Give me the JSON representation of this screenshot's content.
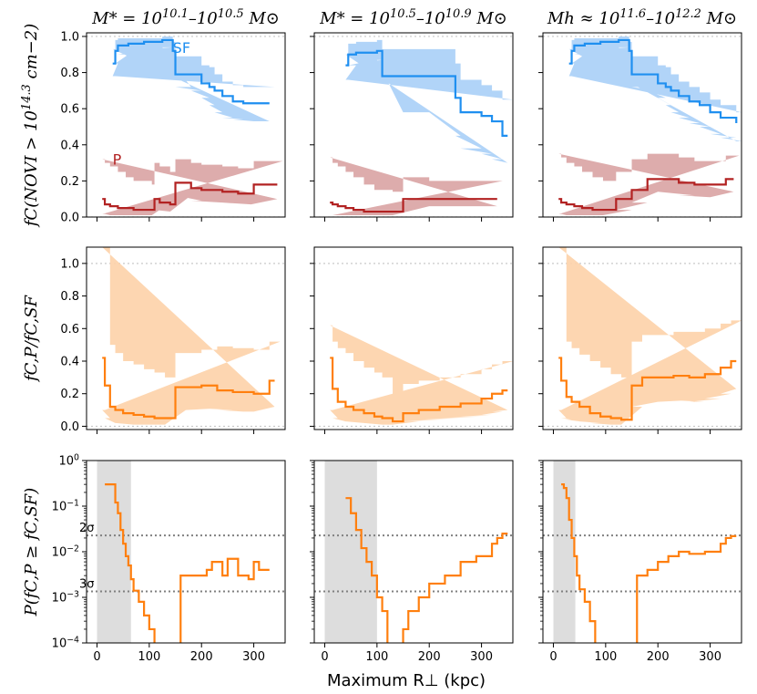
{
  "figure": {
    "xlabel": "Maximum R⊥ (kpc)",
    "column_titles": [
      "M* = 10^10.1–10^10.5 M⊙",
      "M* = 10^10.5–10^10.9 M⊙",
      "Mh ≈ 10^11.6–10^12.2 M⊙"
    ],
    "row_ylabels": [
      "fC(NOVI > 10^14.3 cm−2)",
      "fC,P/fC,SF",
      "P(fC,P ≥ fC,SF)"
    ],
    "series_labels": {
      "sf": "SF",
      "p": "P"
    },
    "sigma_labels": {
      "two": "2σ",
      "three": "3σ"
    },
    "colors": {
      "sf": "#1f8ff0",
      "sf_band": "#a9cff7",
      "p": "#b22222",
      "p_band": "#d9a3a3",
      "ratio": "#ff7f0e",
      "ratio_band": "#fdd1a8",
      "shade": "#dddddd"
    }
  },
  "chart_data": [
    {
      "type": "line",
      "panel": "row1-col1",
      "xlim": [
        -20,
        360
      ],
      "ylim": [
        0,
        1.02
      ],
      "yticks": [
        "0.0",
        "0.2",
        "0.4",
        "0.6",
        "0.8",
        "1.0"
      ],
      "xticks": [
        "0",
        "100",
        "200",
        "300"
      ],
      "series": [
        {
          "name": "SF",
          "x": [
            30,
            35,
            40,
            60,
            90,
            125,
            145,
            150,
            180,
            200,
            215,
            225,
            240,
            260,
            280,
            300,
            330
          ],
          "y": [
            0.85,
            0.92,
            0.95,
            0.96,
            0.97,
            0.98,
            0.92,
            0.79,
            0.79,
            0.74,
            0.72,
            0.7,
            0.67,
            0.64,
            0.63,
            0.63,
            0.63
          ],
          "lo": [
            0.78,
            0.85,
            0.9,
            0.92,
            0.93,
            0.94,
            0.85,
            0.72,
            0.7,
            0.66,
            0.62,
            0.58,
            0.55,
            0.54,
            0.53,
            0.53,
            0.53
          ],
          "hi": [
            0.93,
            0.98,
            0.99,
            0.99,
            0.99,
            1.0,
            0.97,
            0.89,
            0.89,
            0.84,
            0.83,
            0.79,
            0.75,
            0.73,
            0.72,
            0.72,
            0.72
          ]
        },
        {
          "name": "P",
          "x": [
            10,
            15,
            25,
            40,
            55,
            70,
            105,
            110,
            120,
            140,
            150,
            180,
            200,
            240,
            270,
            295,
            300,
            345
          ],
          "y": [
            0.1,
            0.07,
            0.06,
            0.05,
            0.05,
            0.04,
            0.04,
            0.1,
            0.08,
            0.07,
            0.19,
            0.16,
            0.15,
            0.14,
            0.13,
            0.13,
            0.18,
            0.18
          ],
          "lo": [
            0.02,
            0.01,
            0.01,
            0.01,
            0.01,
            0.01,
            0.01,
            0.04,
            0.03,
            0.03,
            0.12,
            0.09,
            0.08,
            0.08,
            0.07,
            0.07,
            0.1,
            0.1
          ],
          "hi": [
            0.32,
            0.3,
            0.28,
            0.25,
            0.22,
            0.2,
            0.18,
            0.3,
            0.28,
            0.25,
            0.32,
            0.3,
            0.29,
            0.28,
            0.27,
            0.27,
            0.31,
            0.31
          ]
        }
      ]
    },
    {
      "type": "line",
      "panel": "row1-col2",
      "xlim": [
        -20,
        360
      ],
      "ylim": [
        0,
        1.02
      ],
      "yticks": [
        "0.0",
        "0.2",
        "0.4",
        "0.6",
        "0.8",
        "1.0"
      ],
      "xticks": [
        "0",
        "100",
        "200",
        "300"
      ],
      "series": [
        {
          "name": "SF",
          "x": [
            40,
            45,
            60,
            80,
            100,
            110,
            150,
            200,
            250,
            260,
            300,
            320,
            340,
            350
          ],
          "y": [
            0.84,
            0.9,
            0.91,
            0.91,
            0.92,
            0.78,
            0.78,
            0.78,
            0.66,
            0.58,
            0.56,
            0.53,
            0.45,
            0.45
          ],
          "lo": [
            0.76,
            0.84,
            0.86,
            0.86,
            0.87,
            0.58,
            0.58,
            0.58,
            0.45,
            0.38,
            0.35,
            0.32,
            0.3,
            0.3
          ],
          "hi": [
            0.9,
            0.96,
            0.97,
            0.97,
            0.98,
            0.93,
            0.93,
            0.93,
            0.85,
            0.76,
            0.73,
            0.7,
            0.65,
            0.65
          ]
        },
        {
          "name": "P",
          "x": [
            10,
            15,
            25,
            40,
            55,
            75,
            95,
            130,
            150,
            200,
            250,
            330
          ],
          "y": [
            0.08,
            0.07,
            0.06,
            0.05,
            0.04,
            0.03,
            0.03,
            0.03,
            0.1,
            0.1,
            0.1,
            0.1
          ],
          "lo": [
            0.01,
            0.01,
            0.01,
            0.01,
            0.01,
            0.01,
            0.01,
            0.01,
            0.06,
            0.06,
            0.06,
            0.06
          ],
          "hi": [
            0.33,
            0.3,
            0.28,
            0.25,
            0.22,
            0.18,
            0.15,
            0.14,
            0.22,
            0.2,
            0.2,
            0.2
          ]
        }
      ]
    },
    {
      "type": "line",
      "panel": "row1-col3",
      "xlim": [
        -20,
        360
      ],
      "ylim": [
        0,
        1.02
      ],
      "yticks": [
        "0.0",
        "0.2",
        "0.4",
        "0.6",
        "0.8",
        "1.0"
      ],
      "xticks": [
        "0",
        "100",
        "200",
        "300"
      ],
      "series": [
        {
          "name": "SF",
          "x": [
            30,
            35,
            40,
            60,
            90,
            125,
            145,
            150,
            180,
            200,
            215,
            225,
            240,
            260,
            280,
            300,
            320,
            350
          ],
          "y": [
            0.85,
            0.92,
            0.95,
            0.96,
            0.97,
            0.98,
            0.92,
            0.79,
            0.79,
            0.74,
            0.72,
            0.7,
            0.67,
            0.64,
            0.62,
            0.58,
            0.55,
            0.52
          ],
          "lo": [
            0.78,
            0.85,
            0.9,
            0.92,
            0.93,
            0.94,
            0.85,
            0.72,
            0.7,
            0.66,
            0.62,
            0.58,
            0.55,
            0.52,
            0.5,
            0.46,
            0.44,
            0.42
          ],
          "hi": [
            0.93,
            0.98,
            0.99,
            0.99,
            0.99,
            1.0,
            0.97,
            0.89,
            0.89,
            0.84,
            0.83,
            0.79,
            0.75,
            0.72,
            0.69,
            0.65,
            0.62,
            0.58
          ]
        },
        {
          "name": "P",
          "x": [
            10,
            15,
            25,
            40,
            55,
            75,
            95,
            120,
            150,
            180,
            200,
            240,
            270,
            300,
            330,
            345
          ],
          "y": [
            0.1,
            0.08,
            0.07,
            0.06,
            0.05,
            0.04,
            0.04,
            0.1,
            0.15,
            0.21,
            0.21,
            0.19,
            0.18,
            0.18,
            0.21,
            0.21
          ],
          "lo": [
            0.02,
            0.01,
            0.01,
            0.01,
            0.01,
            0.01,
            0.01,
            0.04,
            0.08,
            0.14,
            0.14,
            0.12,
            0.11,
            0.11,
            0.14,
            0.14
          ],
          "hi": [
            0.35,
            0.33,
            0.3,
            0.28,
            0.25,
            0.22,
            0.2,
            0.25,
            0.32,
            0.35,
            0.35,
            0.33,
            0.31,
            0.31,
            0.34,
            0.34
          ]
        }
      ]
    },
    {
      "type": "line",
      "panel": "row2-col1",
      "xlim": [
        -20,
        360
      ],
      "ylim": [
        -0.02,
        1.1
      ],
      "yticks": [
        "0.0",
        "0.2",
        "0.4",
        "0.6",
        "0.8",
        "1.0"
      ],
      "xticks": [
        "0",
        "100",
        "200",
        "300"
      ],
      "series": [
        {
          "name": "",
          "x": [
            10,
            15,
            25,
            35,
            50,
            70,
            90,
            110,
            130,
            150,
            170,
            200,
            230,
            260,
            280,
            300,
            330,
            340
          ],
          "y": [
            0.42,
            0.25,
            0.12,
            0.1,
            0.08,
            0.07,
            0.06,
            0.05,
            0.05,
            0.24,
            0.24,
            0.25,
            0.22,
            0.21,
            0.21,
            0.2,
            0.28,
            0.28
          ],
          "lo": [
            0.1,
            0.05,
            0.02,
            0.02,
            0.01,
            0.01,
            0.01,
            0.01,
            0.01,
            0.1,
            0.1,
            0.11,
            0.1,
            0.09,
            0.09,
            0.09,
            0.12,
            0.12
          ],
          "hi": [
            1.1,
            1.1,
            0.5,
            0.45,
            0.4,
            0.38,
            0.35,
            0.33,
            0.3,
            0.45,
            0.45,
            0.47,
            0.49,
            0.48,
            0.48,
            0.47,
            0.52,
            0.52
          ]
        }
      ]
    },
    {
      "type": "line",
      "panel": "row2-col2",
      "xlim": [
        -20,
        360
      ],
      "ylim": [
        -0.02,
        1.1
      ],
      "yticks": [
        "0.0",
        "0.2",
        "0.4",
        "0.6",
        "0.8",
        "1.0"
      ],
      "xticks": [
        "0",
        "100",
        "200",
        "300"
      ],
      "series": [
        {
          "name": "",
          "x": [
            10,
            15,
            25,
            40,
            55,
            75,
            95,
            110,
            130,
            150,
            180,
            220,
            260,
            300,
            320,
            340,
            350
          ],
          "y": [
            0.42,
            0.23,
            0.15,
            0.12,
            0.1,
            0.08,
            0.06,
            0.05,
            0.03,
            0.08,
            0.1,
            0.12,
            0.14,
            0.17,
            0.2,
            0.22,
            0.22
          ],
          "lo": [
            0.1,
            0.05,
            0.03,
            0.03,
            0.02,
            0.02,
            0.01,
            0.01,
            0.01,
            0.03,
            0.04,
            0.05,
            0.06,
            0.07,
            0.09,
            0.1,
            0.1
          ],
          "hi": [
            0.62,
            0.52,
            0.48,
            0.45,
            0.4,
            0.36,
            0.33,
            0.3,
            0.2,
            0.26,
            0.28,
            0.3,
            0.32,
            0.35,
            0.38,
            0.4,
            0.4
          ]
        }
      ]
    },
    {
      "type": "line",
      "panel": "row2-col3",
      "xlim": [
        -20,
        360
      ],
      "ylim": [
        -0.02,
        1.1
      ],
      "yticks": [
        "0.0",
        "0.2",
        "0.4",
        "0.6",
        "0.8",
        "1.0"
      ],
      "xticks": [
        "0",
        "100",
        "200",
        "300"
      ],
      "series": [
        {
          "name": "",
          "x": [
            10,
            15,
            25,
            35,
            50,
            70,
            90,
            110,
            130,
            150,
            170,
            200,
            230,
            260,
            290,
            320,
            340,
            350
          ],
          "y": [
            0.42,
            0.28,
            0.18,
            0.15,
            0.12,
            0.08,
            0.06,
            0.05,
            0.04,
            0.25,
            0.3,
            0.3,
            0.31,
            0.3,
            0.32,
            0.36,
            0.4,
            0.4
          ],
          "lo": [
            0.1,
            0.05,
            0.04,
            0.03,
            0.03,
            0.02,
            0.01,
            0.01,
            0.01,
            0.12,
            0.15,
            0.15,
            0.16,
            0.15,
            0.17,
            0.2,
            0.23,
            0.23
          ],
          "hi": [
            1.1,
            1.1,
            0.52,
            0.48,
            0.44,
            0.4,
            0.36,
            0.32,
            0.3,
            0.52,
            0.56,
            0.56,
            0.58,
            0.58,
            0.6,
            0.63,
            0.65,
            0.65
          ]
        }
      ]
    },
    {
      "type": "line",
      "panel": "row3-col1",
      "yscale": "log",
      "xlim": [
        -20,
        360
      ],
      "ylim": [
        0.0001,
        1
      ],
      "yticks": [
        "10^-4",
        "10^-3",
        "10^-2",
        "10^-1",
        "10^0"
      ],
      "xticks": [
        "0",
        "100",
        "200",
        "300"
      ],
      "shade_x": [
        0,
        65
      ],
      "hlines": [
        {
          "label": "2σ",
          "y": 0.0228
        },
        {
          "label": "3σ",
          "y": 0.00135
        }
      ],
      "series": [
        {
          "name": "",
          "x": [
            15,
            20,
            35,
            40,
            45,
            50,
            55,
            60,
            65,
            70,
            80,
            90,
            100,
            110,
            150,
            160,
            170,
            180,
            200,
            210,
            220,
            240,
            250,
            270,
            290,
            300,
            310,
            330
          ],
          "y": [
            0.3,
            0.3,
            0.12,
            0.07,
            0.03,
            0.015,
            0.008,
            0.005,
            0.0025,
            0.0014,
            0.0008,
            0.0004,
            0.0002,
            5e-05,
            5e-05,
            0.003,
            0.003,
            0.003,
            0.003,
            0.004,
            0.006,
            0.003,
            0.007,
            0.003,
            0.0025,
            0.006,
            0.004,
            0.004
          ]
        }
      ]
    },
    {
      "type": "line",
      "panel": "row3-col2",
      "yscale": "log",
      "xlim": [
        -20,
        360
      ],
      "ylim": [
        0.0001,
        1
      ],
      "yticks": [
        "10^-4",
        "10^-3",
        "10^-2",
        "10^-1",
        "10^0"
      ],
      "xticks": [
        "0",
        "100",
        "200",
        "300"
      ],
      "shade_x": [
        0,
        100
      ],
      "hlines": [
        {
          "label": "2σ",
          "y": 0.0228
        },
        {
          "label": "3σ",
          "y": 0.00135
        }
      ],
      "series": [
        {
          "name": "",
          "x": [
            40,
            50,
            60,
            70,
            80,
            90,
            100,
            110,
            120,
            140,
            150,
            160,
            180,
            200,
            230,
            260,
            290,
            320,
            330,
            340,
            350
          ],
          "y": [
            0.15,
            0.07,
            0.03,
            0.012,
            0.006,
            0.003,
            0.001,
            0.0005,
            5e-05,
            5e-05,
            0.0002,
            0.0005,
            0.001,
            0.002,
            0.003,
            0.006,
            0.008,
            0.015,
            0.02,
            0.025,
            0.025
          ]
        }
      ]
    },
    {
      "type": "line",
      "panel": "row3-col3",
      "yscale": "log",
      "xlim": [
        -20,
        360
      ],
      "ylim": [
        0.0001,
        1
      ],
      "yticks": [
        "10^-4",
        "10^-3",
        "10^-2",
        "10^-1",
        "10^0"
      ],
      "xticks": [
        "0",
        "100",
        "200",
        "300"
      ],
      "shade_x": [
        0,
        42
      ],
      "hlines": [
        {
          "label": "2σ",
          "y": 0.0228
        },
        {
          "label": "3σ",
          "y": 0.00135
        }
      ],
      "series": [
        {
          "name": "",
          "x": [
            15,
            20,
            25,
            30,
            35,
            40,
            45,
            50,
            60,
            70,
            80,
            150,
            160,
            180,
            200,
            220,
            240,
            260,
            290,
            320,
            330,
            340,
            350
          ],
          "y": [
            0.3,
            0.25,
            0.15,
            0.05,
            0.02,
            0.008,
            0.003,
            0.0015,
            0.0008,
            0.0003,
            5e-05,
            5e-05,
            0.003,
            0.004,
            0.006,
            0.008,
            0.01,
            0.009,
            0.01,
            0.015,
            0.02,
            0.022,
            0.022
          ]
        }
      ]
    }
  ]
}
